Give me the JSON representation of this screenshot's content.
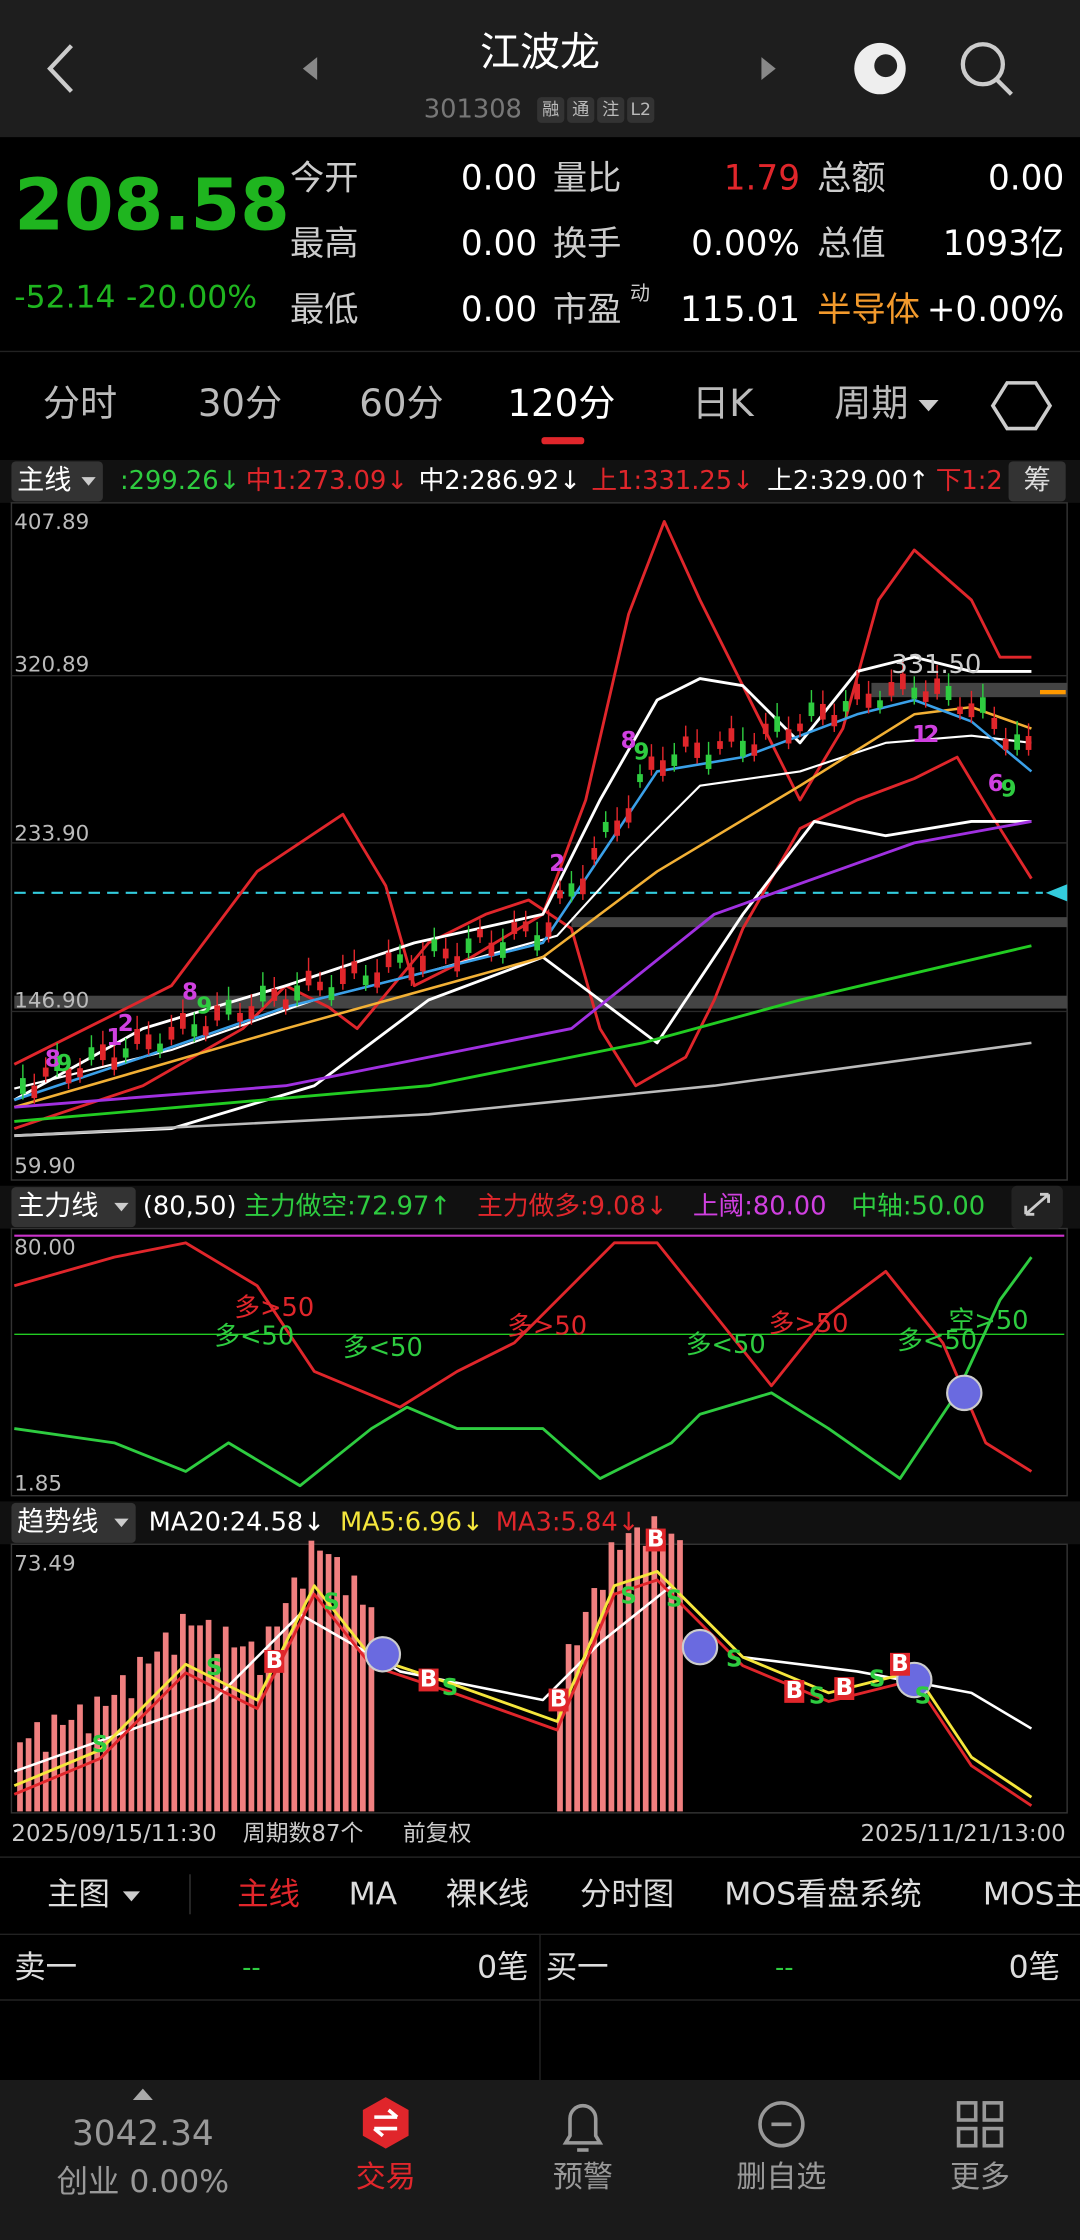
{
  "header": {
    "title": "江波龙",
    "code": "301308",
    "badges": [
      "融",
      "通",
      "注",
      "L2"
    ]
  },
  "quote": {
    "price": "208.58",
    "change": "-52.14",
    "change_pct": "-20.00%",
    "fields": [
      {
        "label": "今开",
        "value": "0.00"
      },
      {
        "label": "量比",
        "value": "1.79"
      },
      {
        "label": "总额",
        "value": "0.00"
      },
      {
        "label": "最高",
        "value": "0.00"
      },
      {
        "label": "换手",
        "value": "0.00%"
      },
      {
        "label": "总值",
        "value": "1093亿"
      },
      {
        "label": "最低",
        "value": "0.00"
      },
      {
        "label": "市盈",
        "sup": "动",
        "value": "115.01"
      },
      {
        "label": "半导体",
        "value": "+0.00%"
      }
    ]
  },
  "tabs": [
    "分时",
    "30分",
    "60分",
    "120分",
    "日K",
    "周期"
  ],
  "main_chart": {
    "selector": "主线",
    "indicators": [
      ":299.26↓",
      "中1:273.09↓",
      "中2:286.92↓",
      "上1:331.25↓",
      "上2:329.00↑",
      "下1:2"
    ],
    "side": "筹",
    "y_labels": [
      "407.89",
      "320.89",
      "233.90",
      "146.90",
      "59.90"
    ],
    "price_tag": "331.50",
    "markers": [
      "8",
      "9",
      "1",
      "2",
      "8",
      "9",
      "2",
      "8",
      "9",
      "1",
      "2",
      "6",
      "9"
    ]
  },
  "sub_chart": {
    "selector": "主力线",
    "params": "(80,50)",
    "indicators": [
      "主力做空:72.97↑",
      "主力做多:9.08↓",
      "上阈:80.00",
      "中轴:50.00"
    ],
    "y_labels": [
      "80.00",
      "1.85"
    ],
    "annotations": [
      "多>50",
      "多<50",
      "多<50",
      "多>50",
      "多<50",
      "多>50",
      "多<50",
      "空>50"
    ]
  },
  "trend_chart": {
    "selector": "趋势线",
    "indicators": [
      "MA20:24.58↓",
      "MA5:6.96↓",
      "MA3:5.84↓"
    ],
    "y_label": "73.49",
    "signals": [
      "S",
      "S",
      "S",
      "S",
      "S",
      "S",
      "S",
      "S",
      "S",
      "S",
      "B",
      "B",
      "B",
      "B",
      "B",
      "B",
      "B"
    ]
  },
  "footer": {
    "start": "2025/09/15/11:30",
    "count": "周期数87个",
    "adjust": "前复权",
    "end": "2025/11/21/13:00"
  },
  "menu": [
    "主图",
    "主线",
    "MA",
    "裸K线",
    "分时图",
    "MOS看盘系统",
    "MOS主"
  ],
  "orderbook": [
    {
      "side": "卖一",
      "dash": "--",
      "count": "0笔"
    },
    {
      "side": "买一",
      "dash": "--",
      "count": "0笔"
    }
  ],
  "nav": {
    "index_value": "3042.34",
    "index_label": "创业 0.00%",
    "items": [
      "交易",
      "预警",
      "删自选",
      "更多"
    ]
  }
}
